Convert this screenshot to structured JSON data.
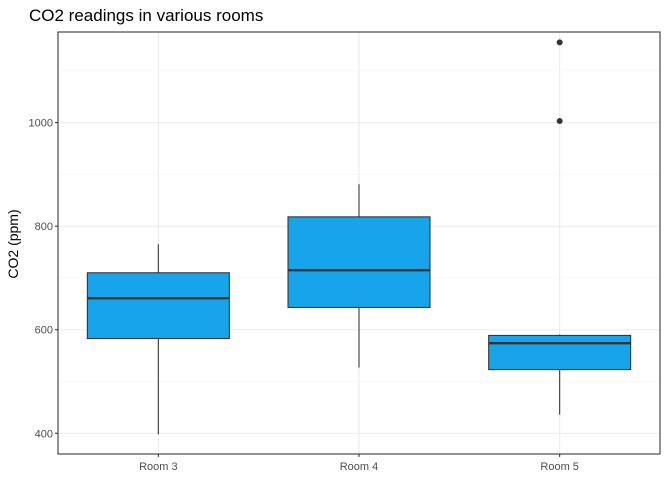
{
  "chart_data": {
    "type": "boxplot",
    "title": "CO2 readings in various rooms",
    "xlabel": "",
    "ylabel": "CO2 (ppm)",
    "ylim": [
      360,
      1175
    ],
    "y_ticks": [
      400,
      600,
      800,
      1000
    ],
    "categories": [
      "Room 3",
      "Room 4",
      "Room 5"
    ],
    "boxes": [
      {
        "category": "Room 3",
        "whisker_low": 398,
        "q1": 583,
        "median": 661,
        "q3": 710,
        "whisker_high": 765,
        "outliers": []
      },
      {
        "category": "Room 4",
        "whisker_low": 527,
        "q1": 643,
        "median": 715,
        "q3": 818,
        "whisker_high": 881,
        "outliers": []
      },
      {
        "category": "Room 5",
        "whisker_low": 436,
        "q1": 523,
        "median": 574,
        "q3": 589,
        "whisker_high": 591,
        "outliers": [
          1003,
          1155
        ]
      }
    ],
    "box_fill": "#17a4eb",
    "grid": true,
    "legend": "none"
  }
}
